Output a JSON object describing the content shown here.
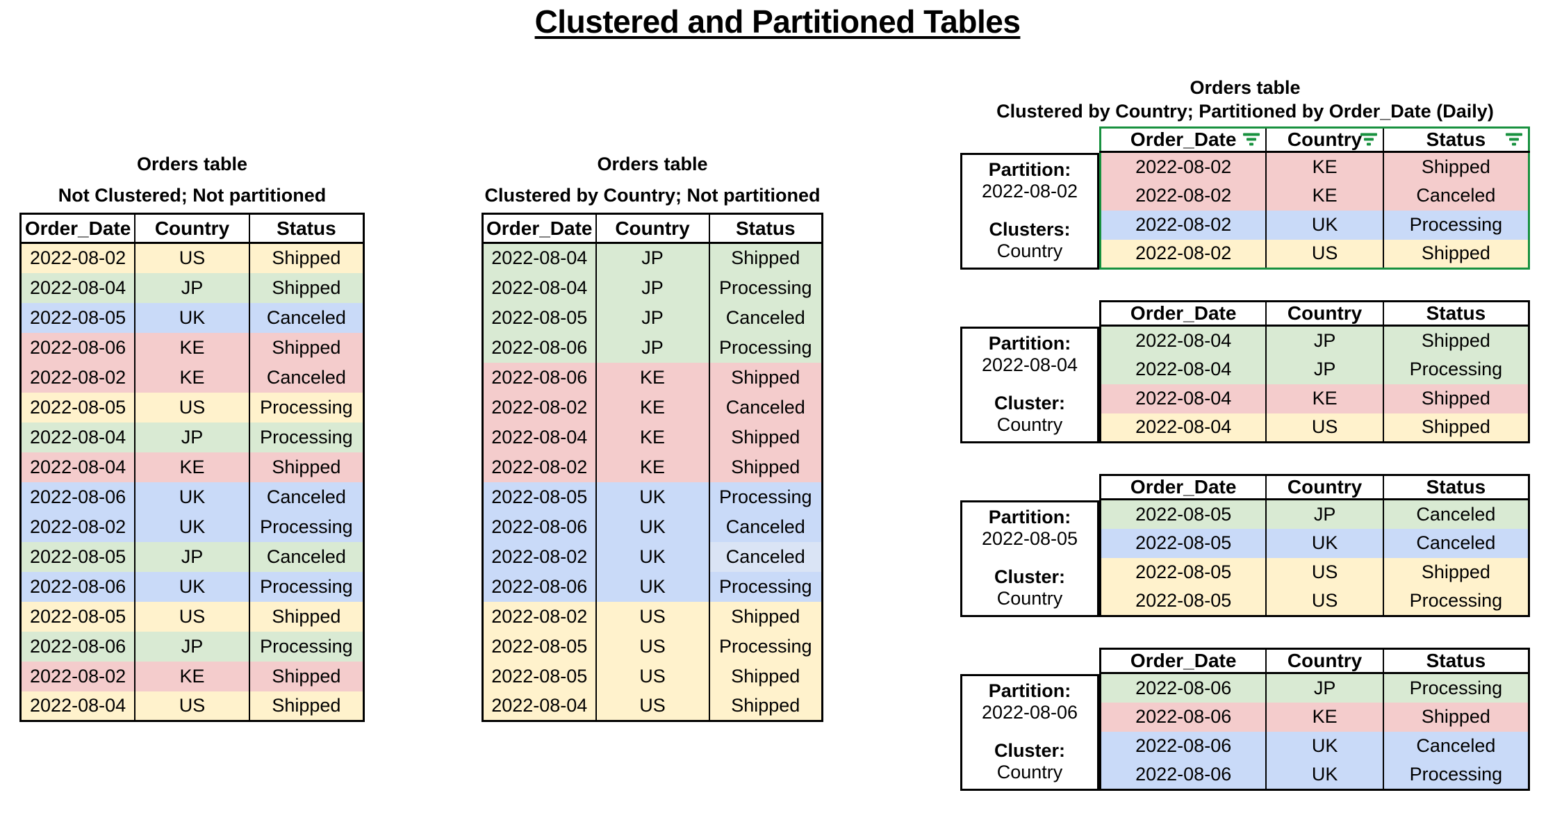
{
  "page_title": "Clustered and Partitioned Tables",
  "colors": {
    "US": "#fff2cc",
    "JP": "#d9ead3",
    "UK": "#c9daf8",
    "KE": "#f4cccc",
    "light_blue_variant": "#dae4f5",
    "accent_green": "#18913f",
    "border_black": "#000000"
  },
  "columns": [
    "Order_Date",
    "Country",
    "Status"
  ],
  "icons": {
    "filter": "filter-funnel-lines"
  },
  "tables": {
    "left": {
      "title": "Orders table",
      "subtitle": "Not Clustered; Not partitioned",
      "rows": [
        [
          "2022-08-02",
          "US",
          "Shipped"
        ],
        [
          "2022-08-04",
          "JP",
          "Shipped"
        ],
        [
          "2022-08-05",
          "UK",
          "Canceled"
        ],
        [
          "2022-08-06",
          "KE",
          "Shipped"
        ],
        [
          "2022-08-02",
          "KE",
          "Canceled"
        ],
        [
          "2022-08-05",
          "US",
          "Processing"
        ],
        [
          "2022-08-04",
          "JP",
          "Processing"
        ],
        [
          "2022-08-04",
          "KE",
          "Shipped"
        ],
        [
          "2022-08-06",
          "UK",
          "Canceled"
        ],
        [
          "2022-08-02",
          "UK",
          "Processing"
        ],
        [
          "2022-08-05",
          "JP",
          "Canceled"
        ],
        [
          "2022-08-06",
          "UK",
          "Processing"
        ],
        [
          "2022-08-05",
          "US",
          "Shipped"
        ],
        [
          "2022-08-06",
          "JP",
          "Processing"
        ],
        [
          "2022-08-02",
          "KE",
          "Shipped"
        ],
        [
          "2022-08-04",
          "US",
          "Shipped"
        ]
      ]
    },
    "middle": {
      "title": "Orders table",
      "subtitle": "Clustered by Country; Not partitioned",
      "rows": [
        [
          "2022-08-04",
          "JP",
          "Shipped"
        ],
        [
          "2022-08-04",
          "JP",
          "Processing"
        ],
        [
          "2022-08-05",
          "JP",
          "Canceled"
        ],
        [
          "2022-08-06",
          "JP",
          "Processing"
        ],
        [
          "2022-08-06",
          "KE",
          "Shipped"
        ],
        [
          "2022-08-02",
          "KE",
          "Canceled"
        ],
        [
          "2022-08-04",
          "KE",
          "Shipped"
        ],
        [
          "2022-08-02",
          "KE",
          "Shipped"
        ],
        [
          "2022-08-05",
          "UK",
          "Processing"
        ],
        [
          "2022-08-06",
          "UK",
          "Canceled"
        ],
        [
          "2022-08-02",
          "UK",
          "Canceled",
          "light_blue_variant"
        ],
        [
          "2022-08-06",
          "UK",
          "Processing"
        ],
        [
          "2022-08-02",
          "US",
          "Shipped"
        ],
        [
          "2022-08-05",
          "US",
          "Processing"
        ],
        [
          "2022-08-05",
          "US",
          "Shipped"
        ],
        [
          "2022-08-04",
          "US",
          "Shipped"
        ]
      ]
    },
    "right": {
      "title": "Orders table",
      "subtitle": "Clustered by Country; Partitioned by Order_Date (Daily)",
      "partitions": [
        {
          "partition_label": "Partition:",
          "partition_value": "2022-08-02",
          "cluster_label": "Clusters:",
          "cluster_value": "Country",
          "filtered": true,
          "rows": [
            [
              "2022-08-02",
              "KE",
              "Shipped"
            ],
            [
              "2022-08-02",
              "KE",
              "Canceled"
            ],
            [
              "2022-08-02",
              "UK",
              "Processing"
            ],
            [
              "2022-08-02",
              "US",
              "Shipped"
            ]
          ]
        },
        {
          "partition_label": "Partition:",
          "partition_value": "2022-08-04",
          "cluster_label": "Cluster:",
          "cluster_value": "Country",
          "filtered": false,
          "rows": [
            [
              "2022-08-04",
              "JP",
              "Shipped"
            ],
            [
              "2022-08-04",
              "JP",
              "Processing"
            ],
            [
              "2022-08-04",
              "KE",
              "Shipped"
            ],
            [
              "2022-08-04",
              "US",
              "Shipped"
            ]
          ]
        },
        {
          "partition_label": "Partition:",
          "partition_value": "2022-08-05",
          "cluster_label": "Cluster:",
          "cluster_value": "Country",
          "filtered": false,
          "rows": [
            [
              "2022-08-05",
              "JP",
              "Canceled"
            ],
            [
              "2022-08-05",
              "UK",
              "Canceled"
            ],
            [
              "2022-08-05",
              "US",
              "Shipped"
            ],
            [
              "2022-08-05",
              "US",
              "Processing"
            ]
          ]
        },
        {
          "partition_label": "Partition:",
          "partition_value": "2022-08-06",
          "cluster_label": "Cluster:",
          "cluster_value": "Country",
          "filtered": false,
          "rows": [
            [
              "2022-08-06",
              "JP",
              "Processing"
            ],
            [
              "2022-08-06",
              "KE",
              "Shipped"
            ],
            [
              "2022-08-06",
              "UK",
              "Canceled"
            ],
            [
              "2022-08-06",
              "UK",
              "Processing"
            ]
          ]
        }
      ]
    }
  }
}
